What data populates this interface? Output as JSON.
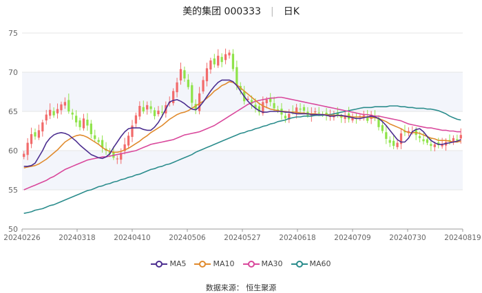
{
  "header": {
    "name": "美的集团 000333",
    "period": "日K"
  },
  "source_text": "数据来源：  恒生聚源",
  "colors": {
    "up": "#f26b6b",
    "down": "#8fe34a",
    "ma5": "#4b2d8f",
    "ma10": "#e08a2c",
    "ma30": "#d9479b",
    "ma60": "#2a8c8c",
    "grid": "#e6e6e6",
    "band": "#f3f5fb"
  },
  "chart_data": {
    "type": "candlestick",
    "x_tick_labels": [
      "20240226",
      "20240318",
      "20240410",
      "20240506",
      "20240527",
      "20240618",
      "20240709",
      "20240730",
      "20240819"
    ],
    "ylim": [
      50,
      75
    ],
    "yticks": [
      50,
      55,
      60,
      65,
      70,
      75
    ],
    "legend": [
      "MA5",
      "MA10",
      "MA30",
      "MA60"
    ],
    "legend_position": "bottom",
    "n_days": 118,
    "closes": [
      59.6,
      61.0,
      62.1,
      61.8,
      62.6,
      63.6,
      64.6,
      65.2,
      64.5,
      65.3,
      65.9,
      66.2,
      65.0,
      64.6,
      63.6,
      63.0,
      64.1,
      63.2,
      62.1,
      61.5,
      61.1,
      60.4,
      60.0,
      59.6,
      59.1,
      59.0,
      59.7,
      60.8,
      61.9,
      63.2,
      64.5,
      65.7,
      65.0,
      65.8,
      65.3,
      64.4,
      65.1,
      64.9,
      65.8,
      66.2,
      67.6,
      68.7,
      70.4,
      69.2,
      68.1,
      66.1,
      65.2,
      67.3,
      69.0,
      70.5,
      71.5,
      71.0,
      72.1,
      71.3,
      72.3,
      72.5,
      70.4,
      68.4,
      67.7,
      66.3,
      66.6,
      66.0,
      65.4,
      64.9,
      66.2,
      66.5,
      66.2,
      65.4,
      65.1,
      64.6,
      64.1,
      64.7,
      64.9,
      65.5,
      65.3,
      65.1,
      64.5,
      64.7,
      65.0,
      64.8,
      64.6,
      64.5,
      64.4,
      64.6,
      64.5,
      64.2,
      64.5,
      64.0,
      64.3,
      64.1,
      64.4,
      64.5,
      63.8,
      64.6,
      64.3,
      63.0,
      62.5,
      61.5,
      61.0,
      60.6,
      61.0,
      62.2,
      62.4,
      62.5,
      62.4,
      62.0,
      61.6,
      61.2,
      61.0,
      60.6,
      60.8,
      60.7,
      60.8,
      61.1,
      61.3,
      61.6,
      61.3,
      62.0
    ],
    "ma5": [
      58.0,
      58.0,
      58.1,
      58.4,
      59.2,
      60.0,
      61.0,
      61.6,
      62.0,
      62.2,
      62.3,
      62.2,
      62.0,
      61.6,
      61.2,
      60.7,
      60.3,
      59.9,
      59.5,
      59.3,
      59.1,
      59.0,
      59.2,
      59.6,
      60.4,
      61.1,
      61.8,
      62.4,
      62.8,
      62.9,
      62.9,
      62.9,
      62.7,
      62.6,
      62.6,
      63.0,
      63.6,
      64.4,
      65.3,
      66.2,
      66.4,
      66.5,
      66.3,
      66.0,
      65.6,
      65.3,
      65.2,
      65.6,
      66.2,
      66.9,
      67.6,
      68.2,
      68.7,
      69.0,
      69.0,
      69.0,
      68.8,
      68.3,
      67.6,
      66.9,
      66.3,
      65.8,
      65.4,
      65.1,
      64.9,
      64.9,
      65.0,
      65.0,
      65.0,
      65.0,
      64.9,
      64.9,
      64.8,
      64.7,
      64.7,
      64.7,
      64.7,
      64.6,
      64.6,
      64.6,
      64.6,
      64.5,
      64.4,
      64.4,
      64.5,
      64.5,
      64.4,
      64.3,
      64.2,
      64.1,
      64.1,
      64.2,
      64.3,
      64.4,
      64.3,
      64.1,
      63.7,
      63.2,
      62.6,
      62.0,
      61.4,
      61.1,
      61.1,
      61.6,
      62.4,
      62.7,
      62.8,
      62.4,
      61.8,
      61.3,
      61.0,
      60.8,
      60.8,
      60.9,
      61.0,
      61.1,
      61.2,
      61.4
    ],
    "ma10": [
      57.8,
      57.9,
      58.0,
      58.1,
      58.3,
      58.6,
      58.9,
      59.3,
      59.7,
      60.1,
      60.6,
      61.1,
      61.4,
      61.7,
      61.9,
      62.0,
      61.9,
      61.7,
      61.4,
      61.1,
      60.8,
      60.4,
      60.1,
      59.9,
      59.8,
      59.8,
      59.9,
      60.1,
      60.3,
      60.6,
      60.9,
      61.2,
      61.6,
      61.9,
      62.3,
      62.6,
      62.9,
      63.2,
      63.6,
      64.0,
      64.3,
      64.6,
      64.8,
      64.9,
      65.1,
      65.4,
      65.7,
      66.0,
      66.3,
      66.7,
      67.1,
      67.6,
      67.9,
      68.3,
      68.5,
      68.8,
      68.7,
      68.4,
      68.0,
      67.6,
      67.2,
      66.8,
      66.4,
      66.0,
      65.7,
      65.5,
      65.3,
      65.2,
      65.1,
      65.0,
      65.0,
      64.9,
      64.9,
      64.9,
      64.8,
      64.8,
      64.7,
      64.7,
      64.7,
      64.6,
      64.6,
      64.6,
      64.5,
      64.5,
      64.5,
      64.4,
      64.4,
      64.4,
      64.3,
      64.3,
      64.3,
      64.3,
      64.3,
      64.2,
      64.2,
      64.1,
      63.9,
      63.7,
      63.4,
      63.2,
      63.0,
      62.8,
      62.5,
      62.3,
      62.3,
      62.3,
      62.2,
      62.0,
      61.8,
      61.6,
      61.5,
      61.3,
      61.3,
      61.3,
      61.2,
      61.1,
      61.1,
      61.2
    ],
    "ma30": [
      55.0,
      55.2,
      55.4,
      55.6,
      55.8,
      56.0,
      56.2,
      56.5,
      56.7,
      57.0,
      57.3,
      57.6,
      57.8,
      58.0,
      58.2,
      58.4,
      58.6,
      58.8,
      58.9,
      59.0,
      59.1,
      59.2,
      59.2,
      59.3,
      59.4,
      59.5,
      59.6,
      59.7,
      59.8,
      59.9,
      60.0,
      60.2,
      60.4,
      60.6,
      60.8,
      60.9,
      61.0,
      61.1,
      61.2,
      61.3,
      61.4,
      61.6,
      61.8,
      62.0,
      62.1,
      62.2,
      62.3,
      62.4,
      62.6,
      62.8,
      63.0,
      63.2,
      63.5,
      63.8,
      64.1,
      64.4,
      64.7,
      65.0,
      65.3,
      65.6,
      65.9,
      66.1,
      66.3,
      66.4,
      66.5,
      66.6,
      66.7,
      66.7,
      66.8,
      66.8,
      66.7,
      66.6,
      66.5,
      66.4,
      66.3,
      66.2,
      66.1,
      66.0,
      65.9,
      65.8,
      65.7,
      65.6,
      65.5,
      65.4,
      65.3,
      65.2,
      65.1,
      65.0,
      64.9,
      64.8,
      64.7,
      64.6,
      64.6,
      64.5,
      64.4,
      64.4,
      64.3,
      64.2,
      64.1,
      64.0,
      63.9,
      63.8,
      63.6,
      63.4,
      63.3,
      63.2,
      63.1,
      63.0,
      62.9,
      62.9,
      62.8,
      62.7,
      62.6,
      62.6,
      62.5,
      62.5,
      62.4,
      62.4
    ],
    "ma60": [
      52.0,
      52.1,
      52.2,
      52.4,
      52.5,
      52.6,
      52.8,
      53.0,
      53.1,
      53.3,
      53.5,
      53.7,
      53.9,
      54.1,
      54.3,
      54.5,
      54.7,
      54.9,
      55.0,
      55.2,
      55.4,
      55.5,
      55.7,
      55.8,
      56.0,
      56.1,
      56.3,
      56.4,
      56.6,
      56.7,
      56.9,
      57.0,
      57.2,
      57.4,
      57.6,
      57.7,
      57.9,
      58.0,
      58.2,
      58.3,
      58.5,
      58.7,
      58.9,
      59.1,
      59.3,
      59.5,
      59.8,
      60.0,
      60.2,
      60.4,
      60.6,
      60.8,
      61.0,
      61.2,
      61.4,
      61.6,
      61.8,
      62.0,
      62.2,
      62.3,
      62.5,
      62.6,
      62.8,
      62.9,
      63.1,
      63.2,
      63.4,
      63.5,
      63.7,
      63.8,
      63.9,
      64.1,
      64.2,
      64.3,
      64.3,
      64.4,
      64.4,
      64.4,
      64.5,
      64.5,
      64.5,
      64.6,
      64.6,
      64.7,
      64.8,
      64.9,
      65.0,
      65.1,
      65.2,
      65.3,
      65.4,
      65.5,
      65.5,
      65.5,
      65.6,
      65.6,
      65.6,
      65.6,
      65.7,
      65.7,
      65.7,
      65.6,
      65.6,
      65.5,
      65.5,
      65.4,
      65.4,
      65.4,
      65.3,
      65.3,
      65.2,
      65.1,
      64.9,
      64.7,
      64.4,
      64.2,
      64.0,
      63.9
    ]
  }
}
